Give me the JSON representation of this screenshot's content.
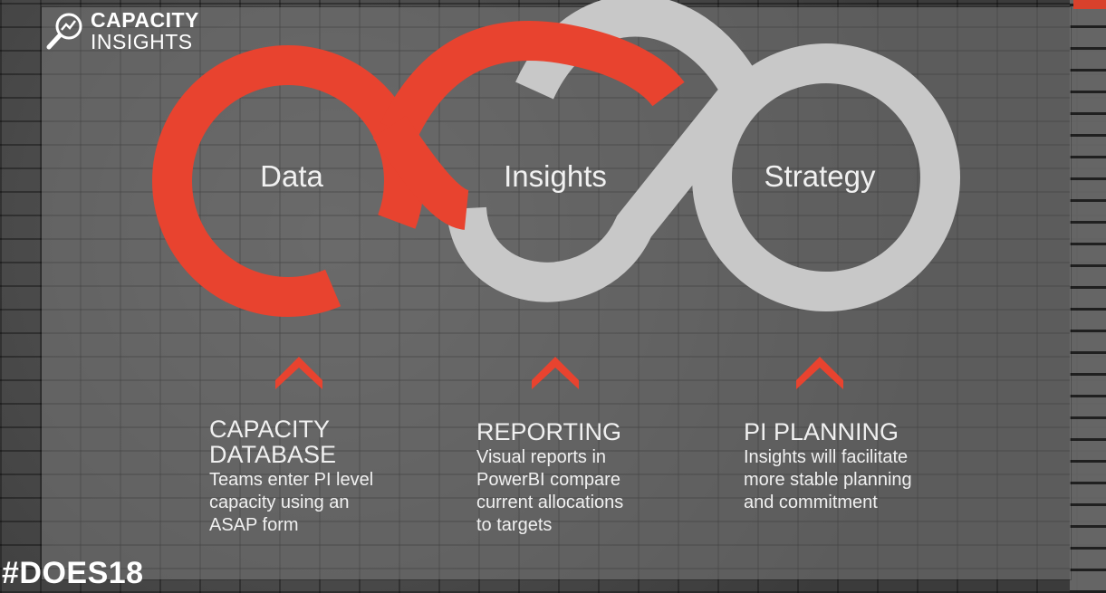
{
  "logo": {
    "line1": "CAPACITY",
    "line2": "INSIGHTS",
    "icon": "magnifier-chart-icon"
  },
  "loop": {
    "labels": [
      "Data",
      "Insights",
      "Strategy"
    ],
    "colors": {
      "accent": "#e8432f",
      "neutral": "#c8c8c8"
    }
  },
  "columns": [
    {
      "title": "CAPACITY\nDATABASE",
      "body": "Teams enter PI level\ncapacity using an\nASAP form"
    },
    {
      "title": "REPORTING",
      "body": "Visual reports in\nPowerBI compare\ncurrent allocations\nto targets"
    },
    {
      "title": "PI PLANNING",
      "body": "Insights will facilitate\nmore stable planning\nand commitment"
    }
  ],
  "chevron_icon": "chevron-up-icon",
  "hashtag": "#DOES18"
}
